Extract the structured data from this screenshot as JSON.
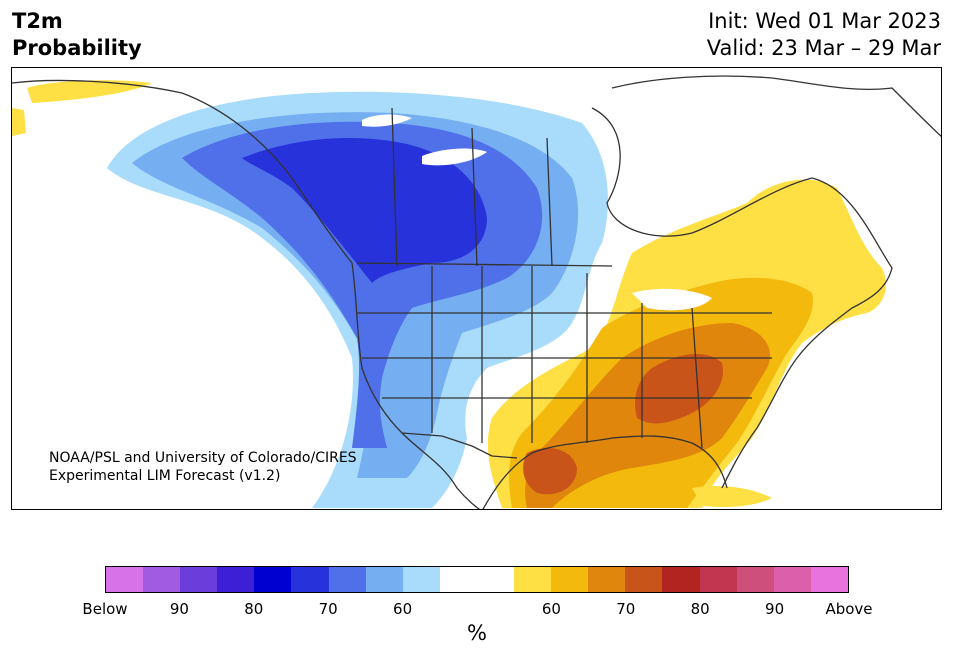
{
  "title": {
    "variable": "T2m",
    "subtitle": "Probability",
    "init": "Init: Wed 01 Mar 2023",
    "valid": "Valid: 23 Mar – 29 Mar"
  },
  "credit": {
    "line1": "NOAA/PSL and University of Colorado/CIRES",
    "line2": "Experimental LIM Forecast (v1.2)"
  },
  "colorbar": {
    "colors": [
      "#d673e8",
      "#a05be2",
      "#6b3ddb",
      "#3d1fd6",
      "#0000d1",
      "#2832db",
      "#4f70e8",
      "#76aef2",
      "#a9dcfb",
      "#ffffff",
      "#ffffff",
      "#fee045",
      "#f3b90c",
      "#e0860c",
      "#c9541a",
      "#b1241f",
      "#c2374f",
      "#cf4f7c",
      "#dc5fac",
      "#e872de"
    ],
    "tick_labels": [
      "Below",
      "90",
      "80",
      "70",
      "60",
      "60",
      "70",
      "80",
      "90",
      "Above"
    ],
    "unit": "%"
  },
  "map_legend": {
    "cold_bins": [
      "60",
      "70",
      "80"
    ],
    "warm_bins": [
      "60",
      "70",
      "80"
    ]
  }
}
